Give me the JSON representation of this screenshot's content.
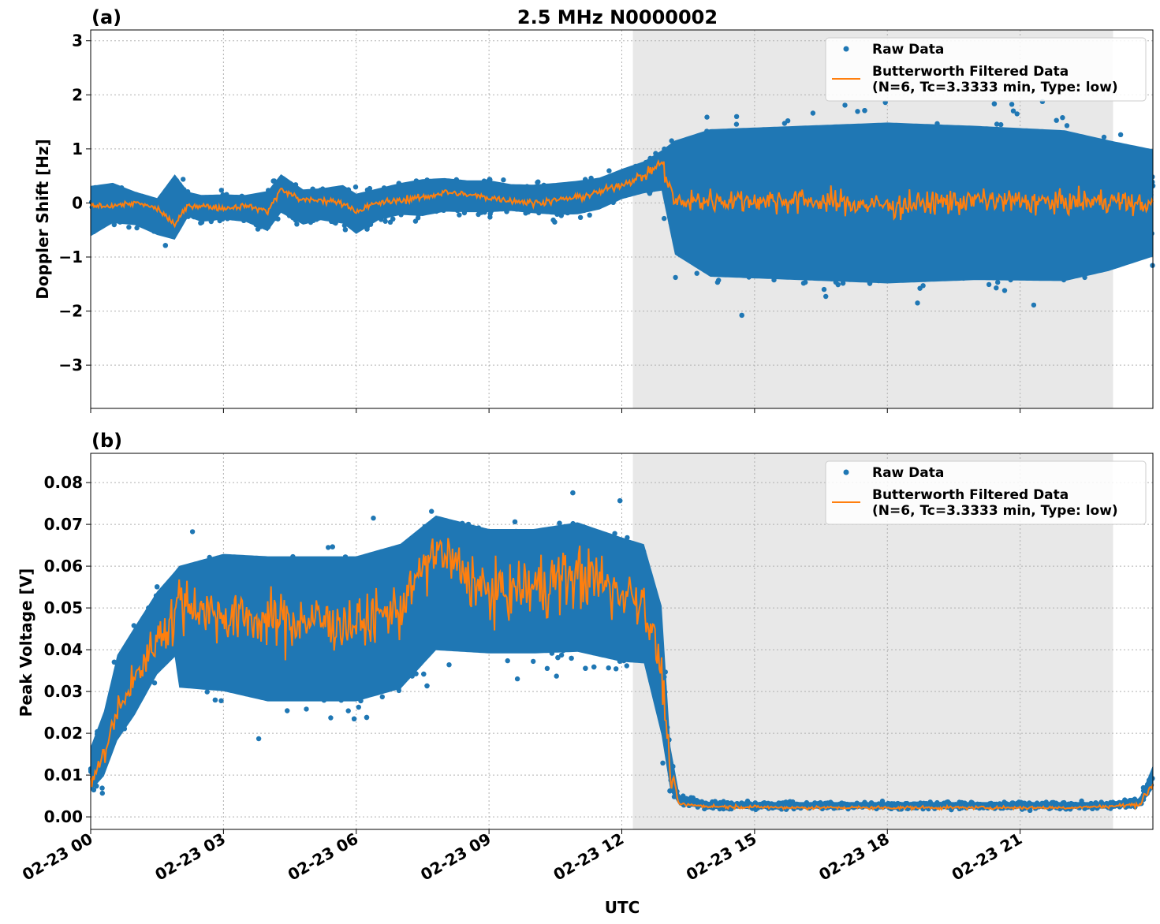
{
  "figure": {
    "title": "2.5 MHz N0000002",
    "xlabel": "UTC",
    "x_tick_labels": [
      "02-23 00",
      "02-23 03",
      "02-23 06",
      "02-23 09",
      "02-23 12",
      "02-23 15",
      "02-23 18",
      "02-23 21"
    ],
    "colors": {
      "raw": "#1f77b4",
      "filtered": "#ff7f0e",
      "shade": "#e8e8e8",
      "grid": "#b0b0b0"
    }
  },
  "chart_data": [
    {
      "type": "scatter",
      "panel_label": "(a)",
      "ylabel": "Doppler Shift [Hz]",
      "x_unit": "hours UTC since 02-23 00",
      "xlim": [
        0,
        24
      ],
      "ylim": [
        -3.8,
        3.2
      ],
      "y_ticks": [
        3,
        2,
        1,
        0,
        -1,
        -2,
        -3
      ],
      "y_tick_labels": [
        "3",
        "2",
        "1",
        "0",
        "−1",
        "−2",
        "−3"
      ],
      "grid": true,
      "legend_position": "top-right",
      "shaded_interval": [
        12.25,
        23.1
      ],
      "series": [
        {
          "name": "Raw Data",
          "kind": "scatter",
          "envelope": {
            "x": [
              0,
              0.5,
              1,
              1.5,
              1.9,
              2.2,
              2.5,
              3,
              3.5,
              4,
              4.3,
              4.8,
              5.2,
              5.7,
              6,
              6.5,
              7,
              7.5,
              8,
              8.5,
              9,
              9.5,
              10,
              10.5,
              11,
              11.5,
              12,
              12.5,
              12.9,
              13.2,
              14,
              16,
              18,
              20,
              22,
              23,
              24
            ],
            "low": [
              -0.9,
              -0.6,
              -0.6,
              -0.8,
              -1.05,
              -0.4,
              -0.5,
              -0.45,
              -0.5,
              -0.75,
              -0.4,
              -0.6,
              -0.5,
              -0.6,
              -0.8,
              -0.5,
              -0.4,
              -0.45,
              -0.35,
              -0.35,
              -0.35,
              -0.3,
              -0.35,
              -0.4,
              -0.4,
              -0.3,
              -0.1,
              0.0,
              0.0,
              -1.6,
              -2.2,
              -2.3,
              -2.4,
              -2.3,
              -2.3,
              -2.0,
              -1.6
            ],
            "high": [
              0.6,
              0.6,
              0.4,
              0.3,
              0.9,
              0.35,
              0.3,
              0.3,
              0.3,
              0.45,
              0.75,
              0.45,
              0.45,
              0.55,
              0.4,
              0.45,
              0.55,
              0.65,
              0.65,
              0.6,
              0.6,
              0.5,
              0.5,
              0.55,
              0.6,
              0.65,
              0.8,
              0.95,
              1.2,
              1.8,
              2.2,
              2.3,
              2.4,
              2.3,
              2.2,
              1.9,
              1.6
            ]
          }
        },
        {
          "name": "Butterworth Filtered Data\n(N=6, Tc=3.3333 min, Type: low)",
          "kind": "line",
          "x": [
            0,
            0.5,
            1,
            1.5,
            1.9,
            2.2,
            2.5,
            3,
            3.5,
            4,
            4.3,
            4.8,
            5.2,
            5.7,
            6,
            6.5,
            7,
            7.5,
            8,
            8.5,
            9,
            9.5,
            10,
            10.5,
            11,
            11.5,
            12,
            12.5,
            12.9,
            13.2,
            14,
            16,
            18,
            20,
            22,
            23,
            24
          ],
          "y": [
            -0.05,
            -0.05,
            0.0,
            -0.1,
            -0.4,
            -0.05,
            -0.05,
            -0.1,
            -0.05,
            -0.15,
            0.25,
            0.05,
            0.05,
            0.0,
            -0.15,
            0.0,
            0.05,
            0.1,
            0.2,
            0.15,
            0.1,
            0.05,
            0.0,
            0.05,
            0.1,
            0.2,
            0.35,
            0.5,
            0.75,
            0.0,
            0.05,
            0.05,
            -0.05,
            0.05,
            0.0,
            0.05,
            -0.05
          ],
          "noise_amplitude": [
            0.04,
            0.04,
            0.04,
            0.04,
            0.05,
            0.04,
            0.04,
            0.04,
            0.04,
            0.05,
            0.06,
            0.05,
            0.05,
            0.05,
            0.05,
            0.05,
            0.05,
            0.05,
            0.05,
            0.05,
            0.05,
            0.05,
            0.05,
            0.05,
            0.05,
            0.05,
            0.06,
            0.08,
            0.1,
            0.18,
            0.18,
            0.18,
            0.18,
            0.18,
            0.18,
            0.16,
            0.14
          ]
        }
      ]
    },
    {
      "type": "scatter",
      "panel_label": "(b)",
      "ylabel": "Peak Voltage [V]",
      "x_unit": "hours UTC since 02-23 00",
      "xlim": [
        0,
        24
      ],
      "ylim": [
        -0.003,
        0.087
      ],
      "y_ticks": [
        0.08,
        0.07,
        0.06,
        0.05,
        0.04,
        0.03,
        0.02,
        0.01,
        0.0
      ],
      "y_tick_labels": [
        "0.08",
        "0.07",
        "0.06",
        "0.05",
        "0.04",
        "0.03",
        "0.02",
        "0.01",
        "0.00"
      ],
      "grid": true,
      "legend_position": "top-right",
      "shaded_interval": [
        12.25,
        23.1
      ],
      "series": [
        {
          "name": "Raw Data",
          "kind": "scatter",
          "envelope": {
            "x": [
              0,
              0.3,
              0.6,
              1,
              1.5,
              1.9,
              2.0,
              3,
              4,
              5,
              6,
              7,
              7.8,
              9,
              10,
              11,
              12,
              12.5,
              12.9,
              13.1,
              13.3,
              14,
              16,
              18,
              20,
              22,
              23,
              23.7,
              24
            ],
            "low": [
              0.003,
              0.005,
              0.012,
              0.018,
              0.028,
              0.032,
              0.022,
              0.02,
              0.017,
              0.017,
              0.017,
              0.02,
              0.03,
              0.03,
              0.03,
              0.03,
              0.028,
              0.028,
              0.01,
              0.003,
              0.002,
              0.0015,
              0.0015,
              0.0015,
              0.0015,
              0.0015,
              0.0015,
              0.002,
              0.005
            ],
            "high": [
              0.02,
              0.03,
              0.045,
              0.052,
              0.06,
              0.065,
              0.069,
              0.073,
              0.073,
              0.073,
              0.073,
              0.076,
              0.082,
              0.078,
              0.078,
              0.08,
              0.076,
              0.074,
              0.06,
              0.02,
              0.006,
              0.004,
              0.004,
              0.004,
              0.004,
              0.004,
              0.004,
              0.005,
              0.014
            ]
          }
        },
        {
          "name": "Butterworth Filtered Data\n(N=6, Tc=3.3333 min, Type: low)",
          "kind": "line",
          "x": [
            0,
            0.3,
            0.6,
            1,
            1.5,
            1.9,
            2.0,
            3,
            4,
            5,
            6,
            7,
            7.8,
            9,
            10,
            11,
            12,
            12.5,
            12.9,
            13.1,
            13.3,
            14,
            16,
            18,
            20,
            22,
            23,
            23.7,
            24
          ],
          "y": [
            0.008,
            0.015,
            0.025,
            0.033,
            0.043,
            0.048,
            0.052,
            0.048,
            0.047,
            0.047,
            0.046,
            0.05,
            0.064,
            0.053,
            0.055,
            0.058,
            0.054,
            0.052,
            0.035,
            0.01,
            0.003,
            0.0025,
            0.0022,
            0.0022,
            0.0022,
            0.0022,
            0.0025,
            0.003,
            0.008
          ],
          "noise_amplitude": [
            0.001,
            0.002,
            0.003,
            0.003,
            0.004,
            0.005,
            0.005,
            0.005,
            0.005,
            0.005,
            0.005,
            0.005,
            0.005,
            0.005,
            0.006,
            0.006,
            0.006,
            0.005,
            0.004,
            0.002,
            0.0003,
            0.0003,
            0.0003,
            0.0003,
            0.0003,
            0.0003,
            0.0003,
            0.0004,
            0.001
          ]
        }
      ]
    }
  ]
}
